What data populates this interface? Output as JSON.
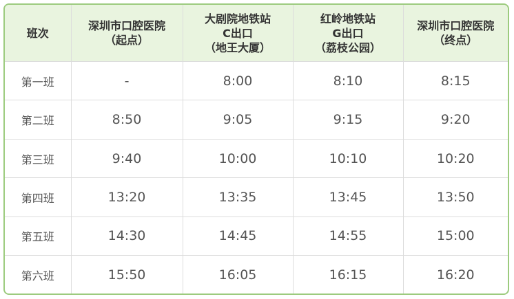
{
  "table": {
    "header": [
      [
        "班次"
      ],
      [
        "深圳市口腔医院",
        "（起点）"
      ],
      [
        "大剧院地铁站",
        "C出口",
        "（地王大厦）"
      ],
      [
        "红岭地铁站",
        "G出口",
        "（荔枝公园）"
      ],
      [
        "深圳市口腔医院",
        "（终点）"
      ]
    ],
    "rows": [
      [
        "第一班",
        "-",
        "8:00",
        "8:10",
        "8:15"
      ],
      [
        "第二班",
        "8:50",
        "9:05",
        "9:15",
        "9:20"
      ],
      [
        "第三班",
        "9:40",
        "10:00",
        "10:10",
        "10:20"
      ],
      [
        "第四班",
        "13:20",
        "13:35",
        "13:45",
        "13:50"
      ],
      [
        "第五班",
        "14:30",
        "14:45",
        "14:55",
        "15:00"
      ],
      [
        "第六班",
        "15:50",
        "16:05",
        "16:15",
        "16:20"
      ]
    ]
  }
}
